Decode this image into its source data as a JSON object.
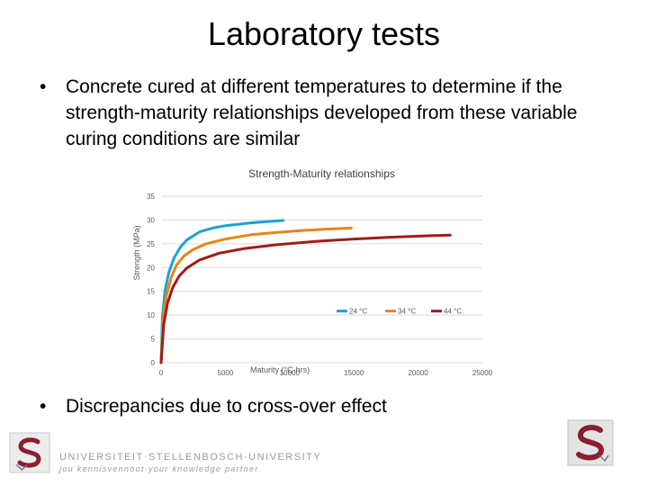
{
  "slide": {
    "title": "Laboratory tests",
    "bullets": [
      "Concrete cured at different temperatures to determine if the strength-maturity relationships developed from these variable curing conditions are similar",
      "Discrepancies due to cross-over effect"
    ],
    "bullet_symbol": "•"
  },
  "footer": {
    "university_name": "UNIVERSITEIT·STELLENBOSCH·UNIVERSITY",
    "tagline": "jou kennisvennoot·your knowledge partner",
    "logo_icon": "stellenbosch-s-crest-icon"
  },
  "colors": {
    "series_24": "#1aa3d1",
    "series_34": "#e8841a",
    "series_44": "#a01c1c",
    "gridline": "#d9d9d9",
    "tick_text": "#595959"
  },
  "chart_data": {
    "type": "line",
    "title": "Strength-Maturity relationships",
    "xlabel": "Maturity (°C-hrs)",
    "ylabel": "Strength (MPa)",
    "xlim": [
      0,
      25000
    ],
    "ylim": [
      0,
      35
    ],
    "x_ticks": [
      0,
      5000,
      10000,
      15000,
      20000,
      25000
    ],
    "y_ticks": [
      0,
      5,
      10,
      15,
      20,
      25,
      30,
      35
    ],
    "grid": "horizontal",
    "legend_position": "inside-right",
    "series": [
      {
        "name": "24 °C",
        "color_key": "series_24",
        "x": [
          0,
          100,
          300,
          600,
          1000,
          1500,
          2000,
          3000,
          4000,
          5000,
          6000,
          7000,
          8000,
          9000,
          9500
        ],
        "y": [
          0,
          9.5,
          15,
          19,
          22,
          24.3,
          25.8,
          27.5,
          28.3,
          28.8,
          29.1,
          29.4,
          29.6,
          29.8,
          29.9
        ]
      },
      {
        "name": "34 °C",
        "color_key": "series_34",
        "x": [
          0,
          150,
          400,
          800,
          1200,
          1800,
          2500,
          3500,
          5000,
          7000,
          9000,
          11000,
          13000,
          14800
        ],
        "y": [
          0,
          9,
          14,
          18,
          20.5,
          22.5,
          23.8,
          25,
          26,
          26.9,
          27.4,
          27.8,
          28.1,
          28.3
        ]
      },
      {
        "name": "44 °C",
        "color_key": "series_44",
        "x": [
          0,
          200,
          500,
          900,
          1400,
          2000,
          3000,
          4500,
          6500,
          9000,
          12000,
          15000,
          18000,
          21000,
          22500
        ],
        "y": [
          0,
          8,
          12.5,
          15.8,
          18.2,
          19.9,
          21.6,
          23,
          24,
          24.8,
          25.5,
          26,
          26.4,
          26.7,
          26.8
        ]
      }
    ]
  }
}
